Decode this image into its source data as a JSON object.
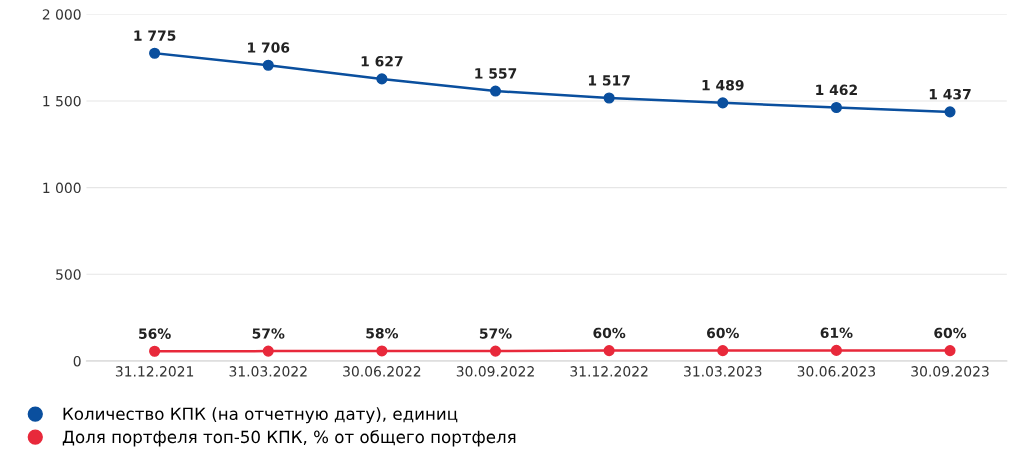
{
  "chart_data": {
    "type": "line",
    "categories": [
      "31.12.2021",
      "31.03.2022",
      "30.06.2022",
      "30.09.2022",
      "31.12.2022",
      "31.03.2023",
      "30.06.2023",
      "30.09.2023"
    ],
    "series": [
      {
        "name": "Количество КПК (на отчетную дату), единиц",
        "color": "#0a4f9e",
        "values": [
          1775,
          1706,
          1627,
          1557,
          1517,
          1489,
          1462,
          1437
        ],
        "value_labels": [
          "1 775",
          "1 706",
          "1 627",
          "1 557",
          "1 517",
          "1 489",
          "1 462",
          "1 437"
        ]
      },
      {
        "name": "Доля портфеля топ-50 КПК, % от общего портфеля",
        "color": "#e8293b",
        "values": [
          56,
          57,
          58,
          57,
          60,
          60,
          61,
          60
        ],
        "value_labels": [
          "56%",
          "57%",
          "58%",
          "57%",
          "60%",
          "60%",
          "61%",
          "60%"
        ]
      }
    ],
    "ylim": [
      0,
      2000
    ],
    "yticks": [
      {
        "value": 0,
        "label": "0"
      },
      {
        "value": 500,
        "label": "500"
      },
      {
        "value": 1000,
        "label": "1 000"
      },
      {
        "value": 1500,
        "label": "1 500"
      },
      {
        "value": 2000,
        "label": "2 000"
      }
    ],
    "grid": "y",
    "legend": "bottom left",
    "marker": "circle",
    "line_style": "solid"
  }
}
